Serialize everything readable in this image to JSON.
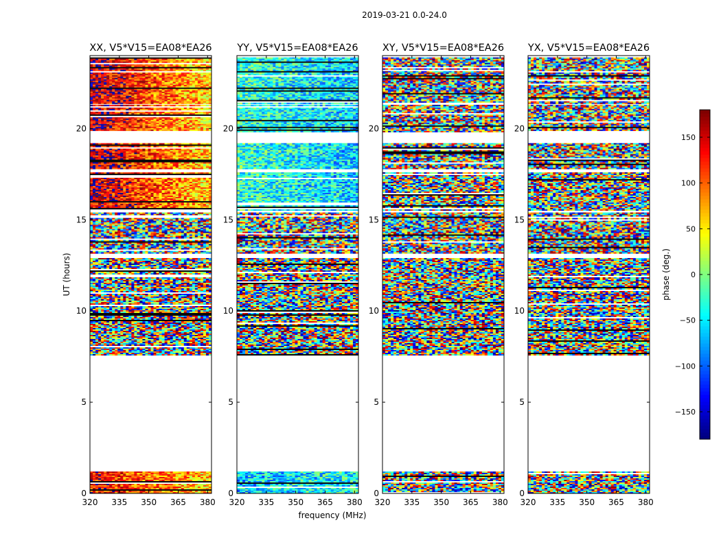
{
  "chart_data": {
    "type": "heatmap",
    "suptitle": "2019-03-21 0.0-24.0",
    "xlabel": "frequency (MHz)",
    "ylabel": "UT (hours)",
    "xlim": [
      320,
      382
    ],
    "ylim": [
      0,
      24
    ],
    "xticks": [
      320,
      335,
      350,
      365,
      380
    ],
    "yticks": [
      0,
      5,
      10,
      15,
      20
    ],
    "colorbar": {
      "label": "phase (deg.)",
      "range": [
        -180,
        180
      ],
      "ticks": [
        -150,
        -100,
        -50,
        0,
        50,
        100,
        150
      ],
      "colormap": "jet",
      "colors": [
        "#00007f",
        "#0000ff",
        "#007fff",
        "#00ffff",
        "#7fff7f",
        "#ffff00",
        "#ff7f00",
        "#ff0000",
        "#7f0000"
      ]
    },
    "data_blocks_ut": [
      [
        0.0,
        1.2
      ],
      [
        7.6,
        12.9
      ],
      [
        13.2,
        15.4
      ],
      [
        15.5,
        17.6
      ],
      [
        17.8,
        19.2
      ],
      [
        19.8,
        21.3
      ],
      [
        21.4,
        23.9
      ]
    ],
    "panels": [
      {
        "title": "XX, V5*V15=EA08*EA26",
        "phase_trend": [
          {
            "ut": [
              0.0,
              1.2
            ],
            "start_deg": 140,
            "end_deg": 60
          },
          {
            "ut": [
              15.5,
              23.9
            ],
            "start_deg": 160,
            "end_deg": 60
          }
        ]
      },
      {
        "title": "YY, V5*V15=EA08*EA26",
        "phase_trend": [
          {
            "ut": [
              0.0,
              1.2
            ],
            "start_deg": -60,
            "end_deg": -40
          },
          {
            "ut": [
              15.5,
              23.9
            ],
            "start_deg": -30,
            "end_deg": -60
          }
        ]
      },
      {
        "title": "XY, V5*V15=EA08*EA26",
        "phase_trend": []
      },
      {
        "title": "YX, V5*V15=EA08*EA26",
        "phase_trend": []
      }
    ]
  }
}
